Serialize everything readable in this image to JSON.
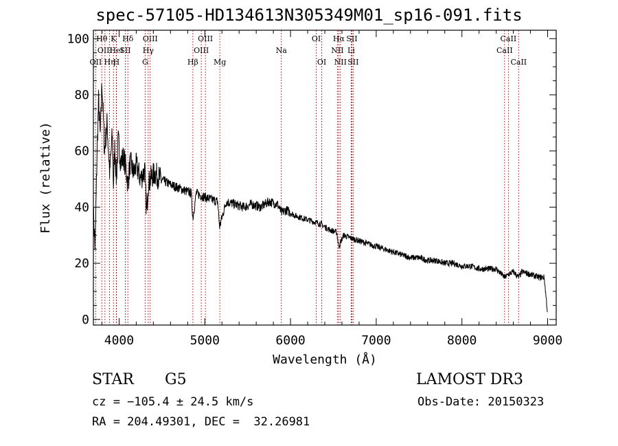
{
  "chart_data": {
    "type": "line",
    "title": "spec-57105-HD134613N305349M01_sp16-091.fits",
    "xlabel": "Wavelength (Å)",
    "ylabel": "Flux (relative)",
    "xlim": [
      3700,
      9100
    ],
    "ylim": [
      -2,
      103
    ],
    "x_ticks": [
      4000,
      5000,
      6000,
      7000,
      8000,
      9000
    ],
    "x_tick_labels": [
      "4000",
      "5000",
      "6000",
      "7000",
      "8000",
      "9000"
    ],
    "y_ticks": [
      0,
      20,
      40,
      60,
      80,
      100
    ],
    "y_tick_labels": [
      "0",
      "20",
      "40",
      "60",
      "80",
      "100"
    ],
    "series": [
      {
        "name": "flux",
        "x": [
          3700,
          3720,
          3740,
          3760,
          3780,
          3800,
          3830,
          3860,
          3890,
          3920,
          3934,
          3950,
          3968,
          3990,
          4020,
          4050,
          4080,
          4102,
          4130,
          4170,
          4200,
          4250,
          4300,
          4320,
          4340,
          4380,
          4420,
          4480,
          4540,
          4600,
          4680,
          4760,
          4840,
          4861,
          4900,
          4960,
          5050,
          5150,
          5172,
          5250,
          5350,
          5450,
          5550,
          5650,
          5750,
          5850,
          5893,
          5950,
          6050,
          6150,
          6250,
          6350,
          6450,
          6540,
          6563,
          6620,
          6700,
          6800,
          6900,
          7000,
          7100,
          7200,
          7300,
          7400,
          7500,
          7600,
          7700,
          7800,
          7900,
          8000,
          8100,
          8200,
          8300,
          8400,
          8498,
          8542,
          8600,
          8662,
          8700,
          8800,
          8900,
          8960,
          9000
        ],
        "values": [
          38,
          25,
          55,
          78,
          65,
          85,
          60,
          70,
          52,
          66,
          48,
          62,
          50,
          64,
          56,
          58,
          54,
          48,
          56,
          52,
          55,
          50,
          53,
          38,
          48,
          51,
          52,
          50,
          49,
          48,
          47,
          46,
          45,
          36,
          45,
          44,
          43,
          42,
          33,
          42,
          41,
          40,
          41,
          40,
          42,
          41,
          38,
          39,
          37,
          36,
          35,
          34,
          32,
          31,
          26,
          30,
          29,
          28,
          27,
          26,
          25,
          24,
          23,
          22,
          22,
          21,
          21,
          20,
          20,
          19,
          19,
          18,
          18,
          18,
          15,
          16,
          17,
          15,
          17,
          16,
          15,
          15,
          2
        ]
      }
    ],
    "lines": [
      {
        "wavelength": 3727,
        "label": "OII",
        "row": 3
      },
      {
        "wavelength": 3798,
        "label": "Hθ",
        "row": 1
      },
      {
        "wavelength": 3835,
        "label": "OIII",
        "row": 2
      },
      {
        "wavelength": 3889,
        "label": "Hη",
        "row": 3
      },
      {
        "wavelength": 3934,
        "label": "K",
        "row": 1
      },
      {
        "wavelength": 3968,
        "label": "H",
        "row": 3
      },
      {
        "wavelength": 3970,
        "label": "HeI",
        "row": 2
      },
      {
        "wavelength": 4072,
        "label": "SII",
        "row": 2
      },
      {
        "wavelength": 4102,
        "label": "Hδ",
        "row": 1
      },
      {
        "wavelength": 4304,
        "label": "G",
        "row": 3
      },
      {
        "wavelength": 4340,
        "label": "Hγ",
        "row": 2
      },
      {
        "wavelength": 4363,
        "label": "OIII",
        "row": 1
      },
      {
        "wavelength": 4861,
        "label": "Hβ",
        "row": 3
      },
      {
        "wavelength": 4959,
        "label": "OIII",
        "row": 2
      },
      {
        "wavelength": 5007,
        "label": "OIII",
        "row": 1
      },
      {
        "wavelength": 5175,
        "label": "Mg",
        "row": 3
      },
      {
        "wavelength": 5893,
        "label": "Na",
        "row": 2
      },
      {
        "wavelength": 6300,
        "label": "OI",
        "row": 1
      },
      {
        "wavelength": 6364,
        "label": "OI",
        "row": 3
      },
      {
        "wavelength": 6548,
        "label": "NII",
        "row": 2
      },
      {
        "wavelength": 6563,
        "label": "Hα",
        "row": 1
      },
      {
        "wavelength": 6583,
        "label": "NII",
        "row": 3
      },
      {
        "wavelength": 6708,
        "label": "Li",
        "row": 2
      },
      {
        "wavelength": 6716,
        "label": "SII",
        "row": 1
      },
      {
        "wavelength": 6731,
        "label": "SII",
        "row": 3
      },
      {
        "wavelength": 8498,
        "label": "CaII",
        "row": 2
      },
      {
        "wavelength": 8542,
        "label": "CaII",
        "row": 1
      },
      {
        "wavelength": 8662,
        "label": "CaII",
        "row": 3
      }
    ]
  },
  "info": {
    "object_class": "STAR",
    "subclass": "G5",
    "survey": "LAMOST DR3",
    "redshift_line": "cz = −105.4 ± 24.5 km/s",
    "obs_date_line": "Obs-Date: 20150323",
    "coords_line": "RA = 204.49301, DEC =  32.26981"
  },
  "colors": {
    "spectrum": "#000000",
    "line_markers": "#cc0000",
    "axes": "#000000"
  }
}
